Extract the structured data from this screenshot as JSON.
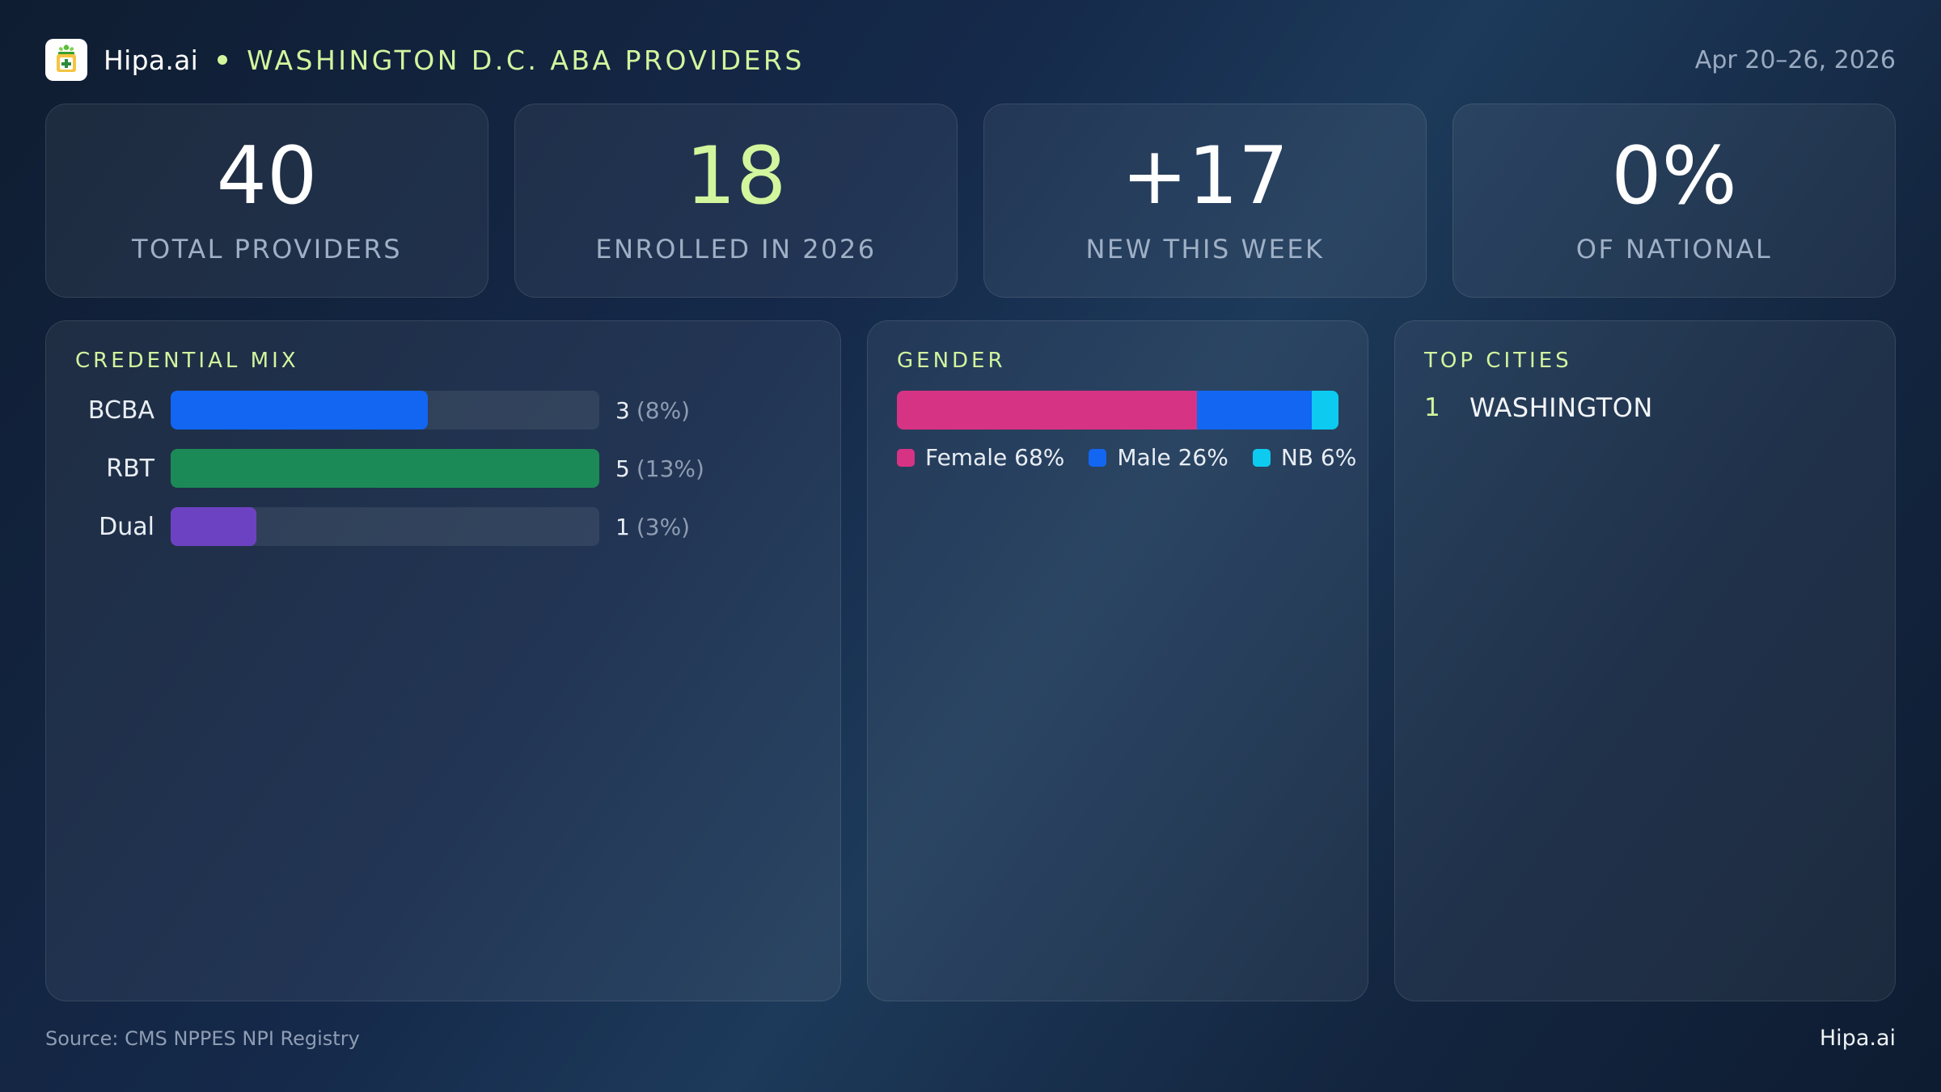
{
  "header": {
    "brand": "Hipa.ai",
    "region": "WASHINGTON D.C. ABA PROVIDERS",
    "date_range": "Apr 20–26, 2026",
    "logo_icon": "clipboard-plant-icon",
    "separator_icon": "bullet-dot-icon"
  },
  "kpis": [
    {
      "value": "40",
      "label": "TOTAL PROVIDERS"
    },
    {
      "value": "18",
      "label": "ENROLLED IN 2026"
    },
    {
      "value": "+17",
      "label": "NEW THIS WEEK"
    },
    {
      "value": "0%",
      "label": "OF NATIONAL"
    }
  ],
  "credential_mix": {
    "title": "CREDENTIAL MIX",
    "rows": [
      {
        "label": "BCBA",
        "count": "3",
        "pct": "(8%)",
        "fill": 0.6,
        "color": "#1266f1"
      },
      {
        "label": "RBT",
        "count": "5",
        "pct": "(13%)",
        "fill": 1.0,
        "color": "#1b8a57"
      },
      {
        "label": "Dual",
        "count": "1",
        "pct": "(3%)",
        "fill": 0.2,
        "color": "#6d42c2"
      }
    ]
  },
  "gender": {
    "title": "GENDER",
    "segments": [
      {
        "label": "Female 68%",
        "share": 68,
        "color": "#d63384"
      },
      {
        "label": "Male 26%",
        "share": 26,
        "color": "#1266f1"
      },
      {
        "label": "NB 6%",
        "share": 6,
        "color": "#0dcaf0"
      }
    ]
  },
  "top_cities": {
    "title": "TOP CITIES",
    "items": [
      {
        "rank": "1",
        "name": "WASHINGTON"
      }
    ]
  },
  "footer": {
    "source": "Source: CMS NPPES NPI Registry",
    "brand": "Hipa.ai"
  },
  "colors": {
    "accent": "#d2f59e",
    "background": "#15294a"
  }
}
